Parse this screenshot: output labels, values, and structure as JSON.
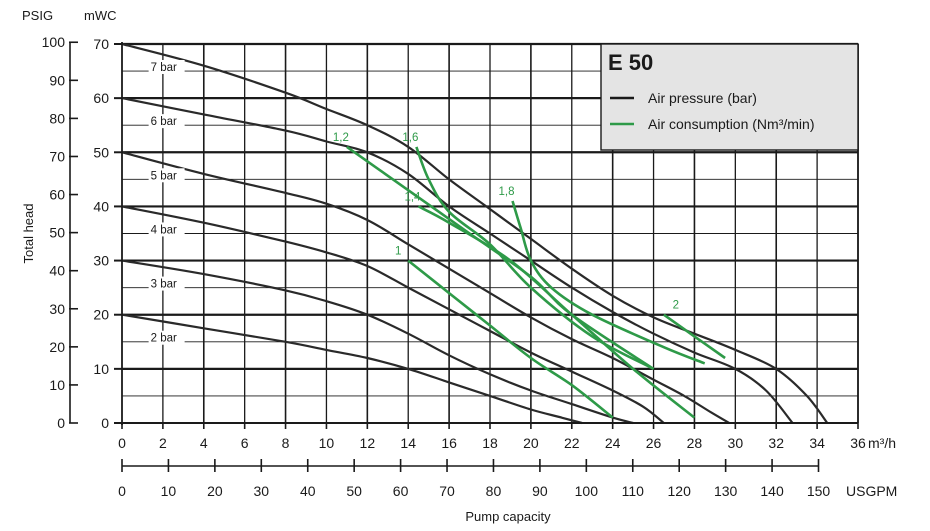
{
  "chart_data": {
    "type": "line",
    "title": "E 50",
    "xlabel": "Pump capacity",
    "ylabel": "Total head",
    "x_unit_primary": "m³/h",
    "x_unit_secondary": "USGPM",
    "y_unit_primary": "mWC",
    "y_unit_secondary": "PSIG",
    "xlim": [
      0,
      36
    ],
    "ylim": [
      0,
      70
    ],
    "x_ticks": [
      "0",
      "2",
      "4",
      "6",
      "8",
      "10",
      "12",
      "14",
      "16",
      "18",
      "20",
      "22",
      "24",
      "26",
      "28",
      "30",
      "32",
      "34",
      "36"
    ],
    "x2_ticks": [
      "0",
      "10",
      "20",
      "30",
      "40",
      "50",
      "60",
      "70",
      "80",
      "90",
      "100",
      "110",
      "120",
      "130",
      "140",
      "150"
    ],
    "y_ticks": [
      "0",
      "10",
      "20",
      "30",
      "40",
      "50",
      "60",
      "70"
    ],
    "y2_ticks": [
      "0",
      "10",
      "20",
      "30",
      "40",
      "50",
      "60",
      "70",
      "80",
      "90",
      "100"
    ],
    "grid": true,
    "legend_position": "top-right",
    "legend": [
      {
        "name": "Air pressure (bar)",
        "color": "#1a1a1a"
      },
      {
        "name": "Air consumption (Nm³/min)",
        "color": "#2e9a48"
      }
    ],
    "pressure_series": [
      {
        "name": "7 bar",
        "x": [
          0,
          4,
          8,
          10,
          12,
          14,
          16,
          18,
          20,
          22,
          24,
          26,
          28,
          30,
          32,
          33.5,
          34.5
        ],
        "y": [
          70,
          66,
          61,
          58,
          55,
          51,
          45,
          39.5,
          34,
          28.5,
          23.5,
          19.5,
          16.5,
          13.5,
          10,
          5,
          0
        ]
      },
      {
        "name": "6 bar",
        "x": [
          0,
          4,
          8,
          10,
          12,
          14,
          16,
          18,
          20,
          22,
          24,
          26,
          28,
          30,
          31.5,
          32.8
        ],
        "y": [
          60,
          57,
          54,
          52,
          50,
          46,
          40,
          35,
          30,
          25,
          20.5,
          16.5,
          13,
          10,
          6,
          0
        ]
      },
      {
        "name": "5 bar",
        "x": [
          0,
          4,
          8,
          10,
          12,
          14,
          16,
          18,
          20,
          22,
          24,
          26,
          27.5,
          28.8,
          29.7
        ],
        "y": [
          50,
          46,
          42.5,
          40.5,
          37.5,
          33,
          28.5,
          24,
          19.5,
          15.5,
          12,
          8,
          5,
          2,
          0
        ]
      },
      {
        "name": "4 bar",
        "x": [
          0,
          4,
          8,
          10,
          12,
          14,
          16,
          18,
          20,
          22,
          24,
          25.5,
          26.5
        ],
        "y": [
          40,
          37,
          33.5,
          31.5,
          29,
          25,
          21,
          17,
          13,
          9.5,
          6,
          3,
          0
        ]
      },
      {
        "name": "3 bar",
        "x": [
          0,
          4,
          8,
          10,
          12,
          14,
          16,
          18,
          20,
          22,
          24,
          25
        ],
        "y": [
          30,
          27.5,
          24.5,
          22.5,
          20,
          16.5,
          12.5,
          9,
          6,
          3.5,
          1,
          0
        ]
      },
      {
        "name": "2 bar",
        "x": [
          0,
          4,
          8,
          10,
          12,
          14,
          16,
          18,
          20,
          21.5,
          22.5
        ],
        "y": [
          20,
          17.5,
          15,
          13.5,
          12,
          10,
          7.5,
          5,
          2.5,
          1,
          0
        ]
      }
    ],
    "air_series": [
      {
        "name": "1",
        "x": [
          14,
          16,
          18,
          20,
          22,
          24
        ],
        "y": [
          30,
          24,
          18,
          12,
          7,
          1
        ]
      },
      {
        "name": "1,2",
        "x": [
          11,
          14,
          17,
          20,
          22,
          26
        ],
        "y": [
          51,
          43,
          35,
          27,
          20,
          10
        ]
      },
      {
        "name": "1,4",
        "x": [
          14.5,
          16,
          19,
          22,
          25,
          28
        ],
        "y": [
          40,
          37,
          30,
          20,
          10,
          1
        ]
      },
      {
        "name": "1,6",
        "x": [
          14.4,
          15,
          16,
          18,
          20,
          23,
          26
        ],
        "y": [
          51,
          45,
          39,
          33,
          25,
          16,
          10
        ]
      },
      {
        "name": "1,8",
        "x": [
          19.1,
          19.5,
          20,
          21,
          23,
          26.5,
          28.5
        ],
        "y": [
          41,
          36,
          30,
          25,
          20,
          14,
          11
        ]
      },
      {
        "name": "2",
        "x": [
          26.5,
          28,
          29.5
        ],
        "y": [
          20,
          16,
          12
        ]
      }
    ]
  }
}
